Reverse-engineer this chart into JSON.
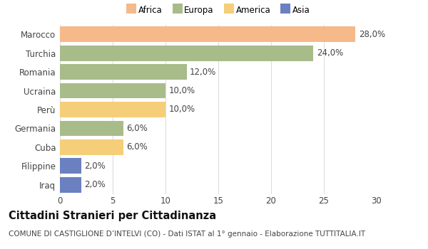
{
  "countries": [
    "Marocco",
    "Turchia",
    "Romania",
    "Ucraina",
    "Perù",
    "Germania",
    "Cuba",
    "Filippine",
    "Iraq"
  ],
  "values": [
    28.0,
    24.0,
    12.0,
    10.0,
    10.0,
    6.0,
    6.0,
    2.0,
    2.0
  ],
  "colors": [
    "#f5b98a",
    "#a8bc8a",
    "#a8bc8a",
    "#a8bc8a",
    "#f5ce7a",
    "#a8bc8a",
    "#f5ce7a",
    "#6b80c0",
    "#6b80c0"
  ],
  "continent_labels": [
    "Africa",
    "Europa",
    "America",
    "Asia"
  ],
  "continent_colors": [
    "#f5b98a",
    "#a8bc8a",
    "#f5ce7a",
    "#6b80c0"
  ],
  "xlim": [
    0,
    30
  ],
  "xticks": [
    0,
    5,
    10,
    15,
    20,
    25,
    30
  ],
  "title": "Cittadini Stranieri per Cittadinanza",
  "subtitle": "COMUNE DI CASTIGLIONE D’INTELVI (CO) - Dati ISTAT al 1° gennaio - Elaborazione TUTTITALIA.IT",
  "bg_color": "#ffffff",
  "grid_color": "#dddddd",
  "bar_height": 0.82,
  "label_fontsize": 8.5,
  "tick_fontsize": 8.5,
  "title_fontsize": 10.5,
  "subtitle_fontsize": 7.5
}
